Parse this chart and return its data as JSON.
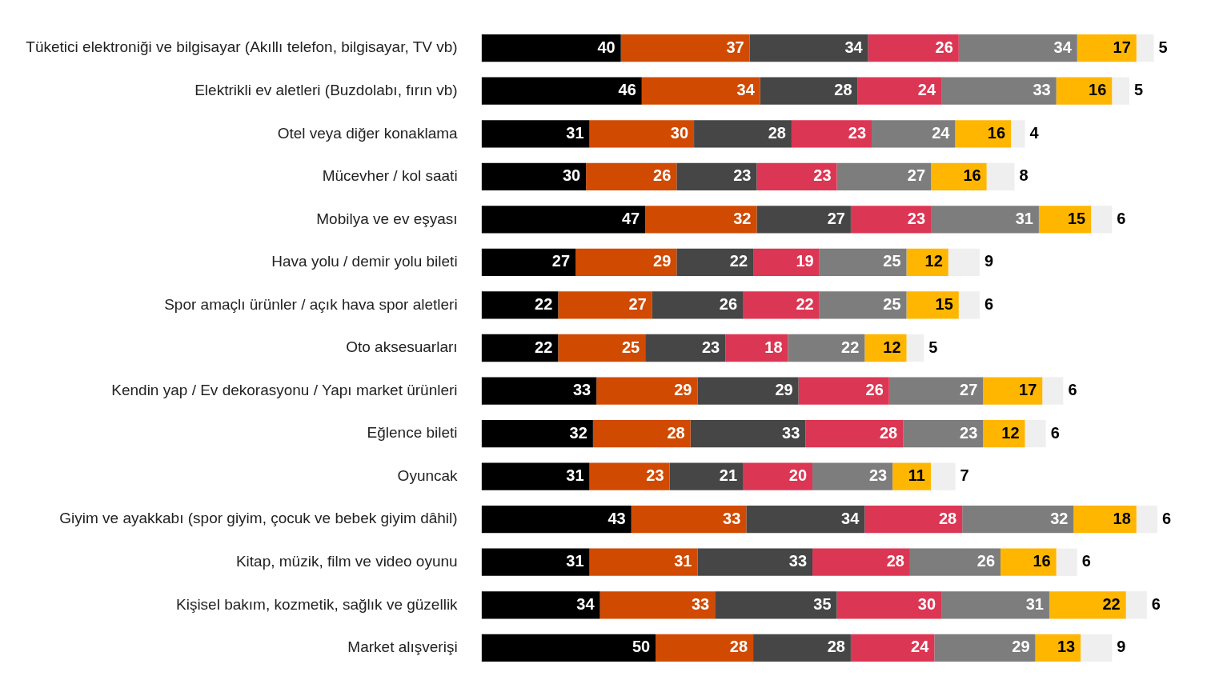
{
  "chart_data": {
    "type": "bar",
    "orientation": "horizontal",
    "stacked": true,
    "data_labels": true,
    "legend": false,
    "categories": [
      "Tüketici elektroniği ve bilgisayar (Akıllı telefon, bilgisayar, TV vb)",
      "Elektrikli ev aletleri (Buzdolabı, fırın vb)",
      "Otel veya diğer konaklama",
      "Mücevher / kol saati",
      "Mobilya ve ev eşyası",
      "Hava yolu / demir yolu bileti",
      "Spor amaçlı ürünler / açık hava spor aletleri",
      "Oto aksesuarları",
      "Kendin yap / Ev dekorasyonu / Yapı market ürünleri",
      "Eğlence bileti",
      "Oyuncak",
      "Giyim ve ayakkabı (spor giyim, çocuk ve bebek giyim dâhil)",
      "Kitap, müzik, film ve video oyunu",
      "Kişisel bakım, kozmetik, sağlık ve güzellik",
      "Market alışverişi"
    ],
    "series": [
      {
        "color": "#000000",
        "values": [
          40,
          46,
          31,
          30,
          47,
          27,
          22,
          22,
          33,
          32,
          31,
          43,
          31,
          34,
          50
        ]
      },
      {
        "color": "#d04a02",
        "values": [
          37,
          34,
          30,
          26,
          32,
          29,
          27,
          25,
          29,
          28,
          23,
          33,
          31,
          33,
          28
        ]
      },
      {
        "color": "#464646",
        "values": [
          34,
          28,
          28,
          23,
          27,
          22,
          26,
          23,
          29,
          33,
          21,
          34,
          33,
          35,
          28
        ]
      },
      {
        "color": "#db3653",
        "values": [
          26,
          24,
          23,
          23,
          23,
          19,
          22,
          18,
          26,
          28,
          20,
          28,
          28,
          30,
          24
        ]
      },
      {
        "color": "#7d7d7d",
        "values": [
          34,
          33,
          24,
          27,
          31,
          25,
          25,
          22,
          27,
          23,
          23,
          32,
          26,
          31,
          29
        ]
      },
      {
        "color": "#ffb600",
        "values": [
          17,
          16,
          16,
          16,
          15,
          12,
          15,
          12,
          17,
          12,
          11,
          18,
          16,
          22,
          13
        ]
      },
      {
        "color": "#efefef",
        "values": [
          5,
          5,
          4,
          8,
          6,
          9,
          6,
          5,
          6,
          6,
          7,
          6,
          6,
          6,
          9
        ]
      }
    ]
  }
}
